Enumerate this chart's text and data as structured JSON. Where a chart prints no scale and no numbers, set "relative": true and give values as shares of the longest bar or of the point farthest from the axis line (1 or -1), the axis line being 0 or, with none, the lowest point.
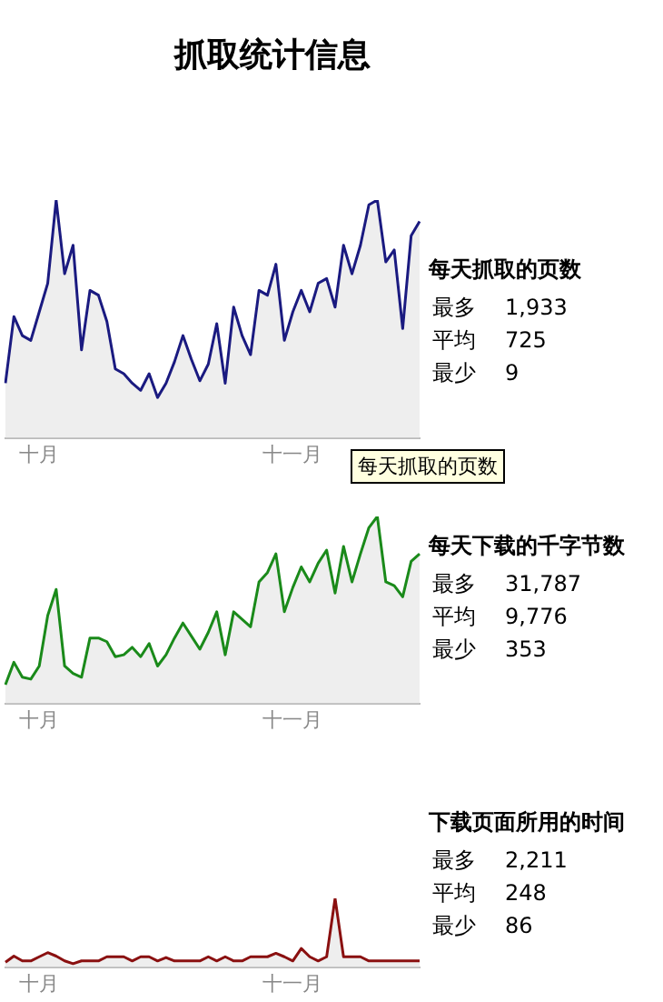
{
  "chart_data": [
    {
      "type": "area",
      "title": "抓取统计信息",
      "relative": true,
      "marker": "none",
      "grid": false,
      "legend": false,
      "categories": [
        null,
        null,
        null,
        null,
        "十月",
        null,
        null,
        null,
        null,
        null,
        null,
        null,
        null,
        null,
        null,
        null,
        null,
        null,
        null,
        null,
        null,
        null,
        null,
        null,
        null,
        null,
        null,
        null,
        null,
        null,
        null,
        null,
        null,
        null,
        "十一月",
        null,
        null,
        null,
        null,
        null,
        null,
        null,
        null,
        null,
        null,
        null,
        null,
        null,
        null,
        null
      ],
      "series": [
        {
          "name": "每天抓取的页数",
          "color": "#1a1a80",
          "values": [
            0.23,
            0.51,
            0.43,
            0.41,
            0.53,
            0.65,
            1,
            0.69,
            0.81,
            0.37,
            0.62,
            0.6,
            0.49,
            0.29,
            0.27,
            0.23,
            0.2,
            0.27,
            0.17,
            0.23,
            0.32,
            0.43,
            0.33,
            0.24,
            0.31,
            0.48,
            0.23,
            0.55,
            0.43,
            0.35,
            0.62,
            0.6,
            0.73,
            0.41,
            0.53,
            0.62,
            0.53,
            0.65,
            0.67,
            0.55,
            0.81,
            0.69,
            0.81,
            0.98,
            1,
            0.74,
            0.79,
            0.46,
            0.85,
            0.91
          ]
        }
      ],
      "annotations": [
        "最多 1,933",
        "平均 725",
        "最少 9"
      ]
    },
    {
      "type": "area",
      "relative": true,
      "marker": "none",
      "grid": false,
      "legend": false,
      "categories": [
        null,
        null,
        null,
        null,
        "十月",
        null,
        null,
        null,
        null,
        null,
        null,
        null,
        null,
        null,
        null,
        null,
        null,
        null,
        null,
        null,
        null,
        null,
        null,
        null,
        null,
        null,
        null,
        null,
        null,
        null,
        null,
        null,
        null,
        null,
        "十一月",
        null,
        null,
        null,
        null,
        null,
        null,
        null,
        null,
        null,
        null,
        null,
        null,
        null,
        null,
        null
      ],
      "series": [
        {
          "name": "每天下载的千字节数",
          "color": "#1a8a1a",
          "values": [
            0.1,
            0.22,
            0.14,
            0.13,
            0.2,
            0.47,
            0.61,
            0.2,
            0.16,
            0.14,
            0.35,
            0.35,
            0.33,
            0.25,
            0.26,
            0.3,
            0.25,
            0.32,
            0.2,
            0.26,
            0.35,
            0.43,
            0.36,
            0.29,
            0.38,
            0.49,
            0.26,
            0.49,
            0.45,
            0.41,
            0.65,
            0.7,
            0.8,
            0.49,
            0.62,
            0.73,
            0.65,
            0.75,
            0.82,
            0.59,
            0.84,
            0.65,
            0.8,
            0.94,
            1,
            0.65,
            0.63,
            0.57,
            0.76,
            0.8
          ]
        }
      ],
      "annotations": [
        "最多 31,787",
        "平均 9,776",
        "最少 353"
      ]
    },
    {
      "type": "area",
      "relative": true,
      "marker": "none",
      "grid": false,
      "legend": false,
      "categories": [
        null,
        null,
        null,
        null,
        "十月",
        null,
        null,
        null,
        null,
        null,
        null,
        null,
        null,
        null,
        null,
        null,
        null,
        null,
        null,
        null,
        null,
        null,
        null,
        null,
        null,
        null,
        null,
        null,
        null,
        null,
        null,
        null,
        null,
        null,
        "十一月",
        null,
        null,
        null,
        null,
        null,
        null,
        null,
        null,
        null,
        null,
        null,
        null,
        null,
        null,
        null
      ],
      "series": [
        {
          "name": "下载页面所用的时间",
          "color": "#8a1010",
          "values": [
            0.07,
            0.16,
            0.09,
            0.09,
            0.15,
            0.21,
            0.16,
            0.09,
            0.05,
            0.09,
            0.09,
            0.09,
            0.15,
            0.15,
            0.15,
            0.09,
            0.15,
            0.15,
            0.09,
            0.14,
            0.09,
            0.09,
            0.09,
            0.09,
            0.15,
            0.09,
            0.15,
            0.09,
            0.09,
            0.15,
            0.15,
            0.15,
            0.2,
            0.15,
            0.09,
            0.27,
            0.15,
            0.09,
            0.15,
            1,
            0.15,
            0.15,
            0.15,
            0.09,
            0.09,
            0.09,
            0.09,
            0.09,
            0.09,
            0.09
          ]
        }
      ],
      "annotations": [
        "最多 2,211",
        "平均 248",
        "最少 86"
      ]
    }
  ]
}
